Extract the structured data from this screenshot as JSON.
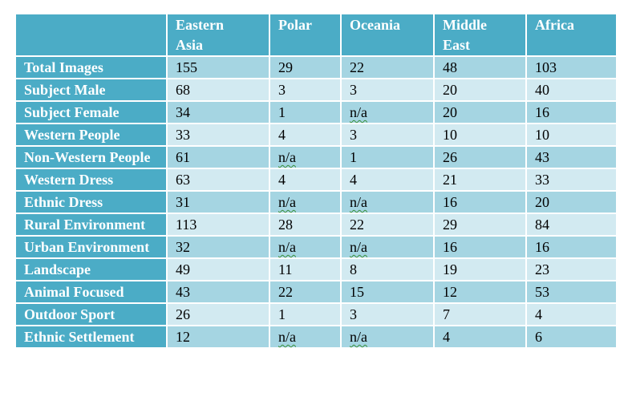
{
  "table": {
    "header": [
      "",
      "Eastern Asia",
      "Polar",
      "Oceania",
      "Middle East",
      "Africa"
    ],
    "rows": [
      {
        "label": "Total Images",
        "values": [
          155,
          29,
          22,
          48,
          103
        ]
      },
      {
        "label": "Subject Male",
        "values": [
          68,
          3,
          3,
          20,
          40
        ]
      },
      {
        "label": "Subject Female",
        "values": [
          34,
          1,
          "n/a",
          20,
          16
        ]
      },
      {
        "label": "Western People",
        "values": [
          33,
          4,
          3,
          10,
          10
        ]
      },
      {
        "label": "Non-Western People",
        "values": [
          61,
          "n/a",
          1,
          26,
          43
        ]
      },
      {
        "label": "Western Dress",
        "values": [
          63,
          4,
          4,
          21,
          33
        ]
      },
      {
        "label": "Ethnic Dress",
        "values": [
          31,
          "n/a",
          "n/a",
          16,
          20
        ]
      },
      {
        "label": "Rural Environment",
        "values": [
          113,
          28,
          22,
          29,
          84
        ]
      },
      {
        "label": "Urban Environment",
        "values": [
          32,
          "n/a",
          "n/a",
          16,
          16
        ]
      },
      {
        "label": "Landscape",
        "values": [
          49,
          11,
          8,
          19,
          23
        ]
      },
      {
        "label": "Animal Focused",
        "values": [
          43,
          22,
          15,
          12,
          53
        ]
      },
      {
        "label": "Outdoor Sport",
        "values": [
          26,
          1,
          3,
          7,
          4
        ]
      },
      {
        "label": "Ethnic Settlement",
        "values": [
          12,
          "n/a",
          "n/a",
          4,
          6
        ]
      }
    ]
  }
}
